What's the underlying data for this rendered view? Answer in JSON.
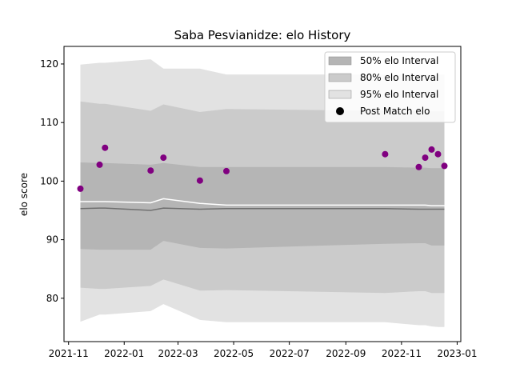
{
  "chart_data": {
    "type": "area",
    "title": "Saba Pesvianidze: elo History",
    "xlabel": "",
    "ylabel": "elo score",
    "xlim": [
      "2021-10-27",
      "2023-01-05"
    ],
    "ylim": [
      72.6,
      123.0
    ],
    "grid": false,
    "legend_placement": "top-right",
    "x_ticks": [
      "2021-11",
      "2022-01",
      "2022-03",
      "2022-05",
      "2022-07",
      "2022-09",
      "2022-11",
      "2023-01"
    ],
    "y_ticks": [
      80,
      90,
      100,
      110,
      120
    ],
    "dates": [
      "2021-11-14",
      "2021-12-05",
      "2021-12-11",
      "2022-01-30",
      "2022-02-13",
      "2022-03-25",
      "2022-04-23",
      "2022-10-14",
      "2022-11-20",
      "2022-11-27",
      "2022-12-04",
      "2022-12-11",
      "2022-12-18"
    ],
    "series": [
      {
        "name": "95% elo Interval",
        "color": "#e2e2e2",
        "upper": [
          119.9,
          120.2,
          120.2,
          120.8,
          119.2,
          119.2,
          118.2,
          118.2,
          118.2,
          118.2,
          118.2,
          118.2,
          118.2
        ],
        "lower": [
          76.0,
          77.2,
          77.2,
          77.8,
          79.0,
          76.3,
          75.9,
          75.9,
          75.4,
          75.4,
          75.2,
          75.1,
          75.1
        ]
      },
      {
        "name": "80% elo Interval",
        "color": "#cbcbcb",
        "upper": [
          113.6,
          113.2,
          113.2,
          112.0,
          113.1,
          111.8,
          112.3,
          112.0,
          111.9,
          111.9,
          111.9,
          111.9,
          111.9
        ],
        "lower": [
          81.8,
          81.6,
          81.6,
          82.1,
          83.2,
          81.3,
          81.4,
          80.9,
          81.2,
          81.2,
          80.9,
          80.9,
          80.9
        ]
      },
      {
        "name": "50% elo Interval",
        "color": "#b5b5b5",
        "upper": [
          103.2,
          103.1,
          103.1,
          102.8,
          103.1,
          102.4,
          102.4,
          102.4,
          102.3,
          102.3,
          102.2,
          102.2,
          102.2
        ],
        "lower": [
          88.4,
          88.3,
          88.3,
          88.3,
          89.8,
          88.6,
          88.5,
          89.3,
          89.4,
          89.4,
          89.0,
          89.0,
          89.0
        ]
      }
    ],
    "lines": [
      {
        "color": "#ffffff",
        "values": [
          96.5,
          96.5,
          96.5,
          96.3,
          97.0,
          96.2,
          95.9,
          95.9,
          95.9,
          95.9,
          95.8,
          95.8,
          95.8
        ]
      },
      {
        "color": "#707070",
        "values": [
          95.3,
          95.4,
          95.4,
          95.0,
          95.4,
          95.2,
          95.3,
          95.3,
          95.2,
          95.2,
          95.2,
          95.2,
          95.2
        ]
      }
    ],
    "points": {
      "name": "Post Match elo",
      "color": "#800080",
      "values": [
        {
          "x": "2021-11-14",
          "y": 98.7
        },
        {
          "x": "2021-12-05",
          "y": 102.8
        },
        {
          "x": "2021-12-11",
          "y": 105.7
        },
        {
          "x": "2022-01-30",
          "y": 101.8
        },
        {
          "x": "2022-02-13",
          "y": 104.0
        },
        {
          "x": "2022-03-25",
          "y": 100.1
        },
        {
          "x": "2022-04-23",
          "y": 101.7
        },
        {
          "x": "2022-10-14",
          "y": 104.6
        },
        {
          "x": "2022-11-20",
          "y": 102.4
        },
        {
          "x": "2022-11-27",
          "y": 104.0
        },
        {
          "x": "2022-12-04",
          "y": 105.4
        },
        {
          "x": "2022-12-11",
          "y": 104.6
        },
        {
          "x": "2022-12-18",
          "y": 102.6
        }
      ]
    },
    "legend": [
      {
        "label": "50% elo Interval",
        "color": "#b5b5b5",
        "marker": "patch"
      },
      {
        "label": "80% elo Interval",
        "color": "#cbcbcb",
        "marker": "patch"
      },
      {
        "label": "95% elo Interval",
        "color": "#e2e2e2",
        "marker": "patch"
      },
      {
        "label": "Post Match elo",
        "color": "#000000",
        "marker": "circle"
      }
    ]
  }
}
